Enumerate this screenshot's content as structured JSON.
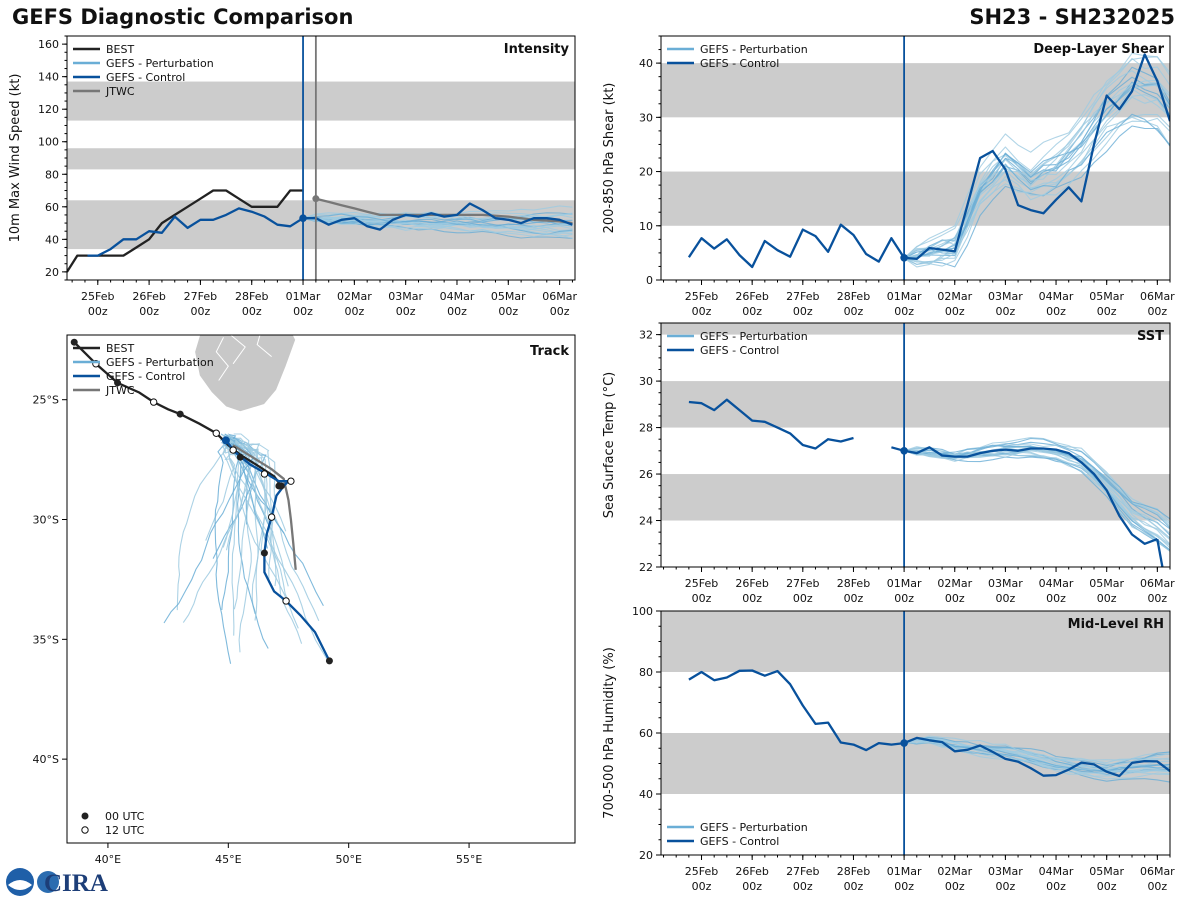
{
  "header": {
    "title": "GEFS Diagnostic Comparison",
    "storm_id": "SH23 - SH232025"
  },
  "time_ticks": [
    {
      "day": "25Feb",
      "hr": "00z",
      "t": 0
    },
    {
      "day": "26Feb",
      "hr": "00z",
      "t": 1
    },
    {
      "day": "27Feb",
      "hr": "00z",
      "t": 2
    },
    {
      "day": "28Feb",
      "hr": "00z",
      "t": 3
    },
    {
      "day": "01Mar",
      "hr": "00z",
      "t": 4
    },
    {
      "day": "02Mar",
      "hr": "00z",
      "t": 5
    },
    {
      "day": "03Mar",
      "hr": "00z",
      "t": 6
    },
    {
      "day": "04Mar",
      "hr": "00z",
      "t": 7
    },
    {
      "day": "05Mar",
      "hr": "00z",
      "t": 8
    },
    {
      "day": "06Mar",
      "hr": "00z",
      "t": 9
    }
  ],
  "colors": {
    "best": "#222222",
    "perturbation": "#6aaed6",
    "perturbation_light": "#9ecae1",
    "control": "#08519c",
    "jtwc": "#777777",
    "band": "#cccccc",
    "land": "#c8c8c8"
  },
  "logo": {
    "text": "CIRA"
  },
  "chart_data": [
    {
      "id": "intensity",
      "type": "line",
      "title": "Intensity",
      "ylabel": "10m Max Wind Speed (kt)",
      "xlim": [
        -0.6,
        9.3
      ],
      "ylim": [
        15,
        165
      ],
      "yticks": [
        20,
        40,
        60,
        80,
        100,
        120,
        140,
        160
      ],
      "bands": [
        [
          34,
          64
        ],
        [
          83,
          96
        ],
        [
          113,
          137
        ]
      ],
      "vlines": [
        {
          "t": 4.0,
          "color": "control"
        },
        {
          "t": 4.25,
          "color": "jtwc"
        }
      ],
      "legend": [
        "BEST",
        "GEFS - Perturbation",
        "GEFS - Control",
        "JTWC"
      ],
      "best": {
        "t": [
          -0.6,
          -0.4,
          -0.2,
          0.0,
          0.25,
          0.5,
          0.75,
          1.0,
          1.25,
          1.5,
          1.75,
          2.0,
          2.25,
          2.5,
          2.75,
          3.0,
          3.25,
          3.5,
          3.75,
          4.0
        ],
        "v": [
          20,
          30,
          30,
          30,
          30,
          30,
          35,
          40,
          50,
          55,
          60,
          65,
          70,
          70,
          65,
          60,
          60,
          60,
          70,
          70
        ]
      },
      "control": {
        "t": [
          -0.2,
          0.0,
          0.25,
          0.5,
          0.75,
          1.0,
          1.25,
          1.5,
          1.75,
          2.0,
          2.25,
          2.5,
          2.75,
          3.0,
          3.25,
          3.5,
          3.75,
          4.0,
          4.25,
          4.5,
          4.75,
          5.0,
          5.25,
          5.5,
          5.75,
          6.0,
          6.25,
          6.5,
          6.75,
          7.0,
          7.25,
          7.5,
          7.75,
          8.0,
          8.25,
          8.5,
          8.75,
          9.0,
          9.25
        ],
        "v": [
          30,
          30,
          34,
          40,
          40,
          45,
          44,
          54,
          47,
          52,
          52,
          55,
          59,
          57,
          54,
          49,
          48,
          53,
          53,
          49,
          52,
          53,
          48,
          46,
          52,
          55,
          54,
          56,
          54,
          55,
          62,
          58,
          53,
          52,
          50,
          53,
          53,
          52,
          49
        ]
      },
      "jtwc": {
        "t": [
          4.25,
          4.5,
          4.75,
          5.0,
          5.25,
          5.5,
          5.75,
          6.0,
          6.5,
          7.0,
          7.5,
          8.0,
          8.5,
          9.0,
          9.25
        ],
        "v": [
          65,
          63,
          61,
          59,
          57,
          55,
          55,
          55,
          55,
          55,
          55,
          54,
          52,
          51,
          50
        ]
      },
      "perturbation": {
        "start": 4.0,
        "end": 9.3,
        "step": 0.25,
        "start_value": 53,
        "members": 20,
        "spread": 8,
        "drift": -4,
        "seed": 11
      }
    },
    {
      "id": "shear",
      "type": "line",
      "title": "Deep-Layer Shear",
      "ylabel": "200-850 hPa Shear (kt)",
      "xlim": [
        -0.8,
        9.25
      ],
      "ylim": [
        0,
        45
      ],
      "yticks": [
        0,
        10,
        20,
        30,
        40
      ],
      "bands": [
        [
          10,
          20
        ],
        [
          30,
          40
        ]
      ],
      "vlines": [
        {
          "t": 4.0,
          "color": "control"
        }
      ],
      "legend": [
        "GEFS - Perturbation",
        "GEFS - Control"
      ],
      "control": {
        "t": [
          -0.25,
          0.0,
          0.25,
          0.5,
          0.75,
          1.0,
          1.25,
          1.5,
          1.75,
          2.0,
          2.25,
          2.5,
          2.75,
          3.0,
          3.25,
          3.5,
          3.75,
          4.0,
          4.25,
          4.5,
          4.75,
          5.0,
          5.25,
          5.5,
          5.75,
          6.0,
          6.25,
          6.5,
          6.75,
          7.0,
          7.25,
          7.5,
          7.75,
          8.0,
          8.25,
          8.5,
          8.75,
          9.0,
          9.25
        ],
        "v": [
          4.2,
          7.7,
          5.8,
          7.5,
          4.6,
          2.4,
          7.2,
          5.5,
          4.3,
          9.3,
          8.1,
          5.2,
          10.2,
          8.3,
          4.8,
          3.4,
          7.7,
          4.1,
          3.9,
          5.9,
          5.6,
          5.3,
          13.8,
          22.5,
          23.8,
          20.4,
          13.8,
          12.9,
          12.3,
          14.8,
          17.1,
          14.5,
          25.0,
          34.0,
          31.5,
          34.8,
          41.6,
          36.7,
          29.3
        ]
      },
      "perturbation": {
        "start": 4.0,
        "end": 9.25,
        "step": 0.25,
        "members": 20,
        "seed": 23,
        "guide_t": [
          4.0,
          4.5,
          5.0,
          5.5,
          6.0,
          6.5,
          7.0,
          7.5,
          8.0,
          8.5,
          9.0,
          9.25
        ],
        "guide_v": [
          4,
          5,
          6,
          16,
          21,
          18,
          20,
          24,
          30,
          34,
          33,
          30
        ],
        "spread": 6
      }
    },
    {
      "id": "sst",
      "type": "line",
      "title": "SST",
      "ylabel": "Sea Surface Temp (°C)",
      "xlim": [
        -0.8,
        9.25
      ],
      "ylim": [
        22,
        32.5
      ],
      "yticks": [
        22,
        24,
        26,
        28,
        30,
        32
      ],
      "bands": [
        [
          24,
          26
        ],
        [
          28,
          30
        ],
        [
          32,
          32.5
        ]
      ],
      "vlines": [
        {
          "t": 4.0,
          "color": "control"
        }
      ],
      "legend": [
        "GEFS - Perturbation",
        "GEFS - Control"
      ],
      "control_hist": {
        "t": [
          -0.25,
          0.0,
          0.25,
          0.5,
          0.75,
          1.0,
          1.25,
          1.5,
          1.75,
          2.0,
          2.25,
          2.5,
          2.75,
          3.0
        ],
        "v": [
          29.1,
          29.05,
          28.75,
          29.2,
          28.75,
          28.3,
          28.25,
          28.0,
          27.75,
          27.25,
          27.1,
          27.5,
          27.4,
          27.55
        ]
      },
      "control": {
        "t": [
          3.75,
          4.0,
          4.25,
          4.5,
          4.75,
          5.0,
          5.25,
          5.5,
          5.75,
          6.0,
          6.25,
          6.5,
          6.75,
          7.0,
          7.25,
          7.5,
          7.75,
          8.0,
          8.25,
          8.5,
          8.75,
          9.0
        ],
        "v": [
          27.15,
          27.0,
          26.9,
          27.15,
          26.8,
          26.75,
          26.75,
          26.9,
          27.0,
          27.05,
          27.0,
          27.1,
          27.1,
          27.05,
          26.9,
          26.5,
          26.0,
          25.3,
          24.2,
          23.4,
          23.0,
          23.2
        ]
      },
      "control_tail": {
        "t": [
          9.0,
          9.1
        ],
        "v": [
          23.2,
          22.0
        ]
      },
      "perturbation": {
        "start": 4.0,
        "end": 9.25,
        "step": 0.25,
        "members": 20,
        "seed": 37,
        "guide_t": [
          4.0,
          5.0,
          6.0,
          6.5,
          7.0,
          7.5,
          8.0,
          8.5,
          9.0,
          9.25
        ],
        "guide_v": [
          27.0,
          26.8,
          27.1,
          27.2,
          27.0,
          26.6,
          25.6,
          24.4,
          23.8,
          23.3
        ],
        "spread": 0.6
      }
    },
    {
      "id": "rh",
      "type": "line",
      "title": "Mid-Level RH",
      "ylabel": "700-500 hPa Humidity (%)",
      "xlim": [
        -0.8,
        9.25
      ],
      "ylim": [
        20,
        100
      ],
      "yticks": [
        20,
        40,
        60,
        80,
        100
      ],
      "bands": [
        [
          40,
          60
        ],
        [
          80,
          100
        ]
      ],
      "vlines": [
        {
          "t": 4.0,
          "color": "control"
        }
      ],
      "legend": [
        "GEFS - Perturbation",
        "GEFS - Control"
      ],
      "control": {
        "t": [
          -0.25,
          0.0,
          0.25,
          0.5,
          0.75,
          1.0,
          1.25,
          1.5,
          1.75,
          2.0,
          2.25,
          2.5,
          2.75,
          3.0,
          3.25,
          3.5,
          3.75,
          4.0,
          4.25,
          4.5,
          4.75,
          5.0,
          5.25,
          5.5,
          5.75,
          6.0,
          6.25,
          6.5,
          6.75,
          7.0,
          7.25,
          7.5,
          7.75,
          8.0,
          8.25,
          8.5,
          8.75,
          9.0,
          9.25
        ],
        "v": [
          77.5,
          80.0,
          77.3,
          78.2,
          80.4,
          80.5,
          78.8,
          80.3,
          76.0,
          69.0,
          63.0,
          63.4,
          56.9,
          56.2,
          54.4,
          56.7,
          56.2,
          56.7,
          58.4,
          57.6,
          57.0,
          54.0,
          54.5,
          55.9,
          53.8,
          51.5,
          50.6,
          48.5,
          46.0,
          46.2,
          48.0,
          50.3,
          49.7,
          47.3,
          45.9,
          50.2,
          50.8,
          50.7,
          47.5
        ]
      },
      "perturbation": {
        "start": 4.0,
        "end": 9.25,
        "step": 0.25,
        "members": 20,
        "seed": 51,
        "guide_t": [
          4.0,
          4.5,
          5.0,
          6.0,
          7.0,
          8.0,
          9.0,
          9.25
        ],
        "guide_v": [
          57,
          58,
          56,
          54,
          50,
          48,
          50,
          50
        ],
        "spread": 4
      }
    },
    {
      "id": "track",
      "type": "line",
      "title": "Track",
      "xlim": [
        38.3,
        59.4
      ],
      "ylim": [
        -43.5,
        -22.3
      ],
      "xticks": [
        {
          "v": 40,
          "label": "40°E"
        },
        {
          "v": 45,
          "label": "45°E"
        },
        {
          "v": 50,
          "label": "50°E"
        },
        {
          "v": 55,
          "label": "55°E"
        }
      ],
      "yticks": [
        {
          "v": -25,
          "label": "25°S"
        },
        {
          "v": -30,
          "label": "30°S"
        },
        {
          "v": -35,
          "label": "35°S"
        },
        {
          "v": -40,
          "label": "40°S"
        }
      ],
      "legend": [
        "BEST",
        "GEFS - Perturbation",
        "GEFS - Control",
        "JTWC"
      ],
      "marker_legend": [
        "00 UTC",
        "12 UTC"
      ],
      "best": {
        "lon": [
          38.6,
          39.5,
          40.4,
          41.3,
          41.9,
          42.5,
          43.0,
          43.8,
          44.5,
          45.0,
          45.5,
          46.3,
          46.9,
          47.2
        ],
        "lat": [
          -22.6,
          -23.5,
          -24.3,
          -24.7,
          -25.1,
          -25.4,
          -25.6,
          -26.0,
          -26.4,
          -26.9,
          -27.3,
          -27.8,
          -28.2,
          -28.6
        ]
      },
      "best_markers": [
        {
          "lon": 38.6,
          "lat": -22.6,
          "kind": "00"
        },
        {
          "lon": 39.5,
          "lat": -23.5,
          "kind": "12"
        },
        {
          "lon": 40.4,
          "lat": -24.3,
          "kind": "00"
        },
        {
          "lon": 41.9,
          "lat": -25.1,
          "kind": "12"
        },
        {
          "lon": 43.0,
          "lat": -25.6,
          "kind": "00"
        },
        {
          "lon": 44.5,
          "lat": -26.4,
          "kind": "12"
        },
        {
          "lon": 45.5,
          "lat": -27.4,
          "kind": "00"
        },
        {
          "lon": 47.2,
          "lat": -28.6,
          "kind": "00"
        }
      ],
      "control": {
        "lon": [
          44.9,
          45.3,
          45.9,
          46.6,
          47.1,
          47.5,
          47.3,
          47.0,
          46.8,
          46.6,
          46.5,
          46.5,
          46.9,
          47.4,
          48.0,
          48.6,
          49.2
        ],
        "lat": [
          -26.7,
          -27.2,
          -27.7,
          -28.1,
          -28.4,
          -28.4,
          -28.6,
          -29.0,
          -29.9,
          -30.6,
          -31.4,
          -32.2,
          -33.0,
          -33.4,
          -34.0,
          -34.7,
          -35.9
        ]
      },
      "control_markers": [
        {
          "lon": 44.9,
          "lat": -26.7,
          "kind": "big"
        },
        {
          "lon": 45.2,
          "lat": -27.1,
          "kind": "12"
        },
        {
          "lon": 46.5,
          "lat": -28.1,
          "kind": "12"
        },
        {
          "lon": 47.6,
          "lat": -28.4,
          "kind": "12"
        },
        {
          "lon": 47.1,
          "lat": -28.6,
          "kind": "00"
        },
        {
          "lon": 46.8,
          "lat": -29.9,
          "kind": "12"
        },
        {
          "lon": 46.5,
          "lat": -31.4,
          "kind": "00"
        },
        {
          "lon": 47.4,
          "lat": -33.4,
          "kind": "12"
        },
        {
          "lon": 49.2,
          "lat": -35.9,
          "kind": "00"
        }
      ],
      "jtwc": {
        "lon": [
          45.2,
          46.0,
          46.8,
          47.3,
          47.5,
          47.6,
          47.7,
          47.8
        ],
        "lat": [
          -26.9,
          -27.4,
          -27.9,
          -28.3,
          -29.2,
          -30.0,
          -31.0,
          -32.1
        ]
      },
      "perturbation": {
        "members": 30,
        "seed": 7,
        "start_lon": 45.0,
        "start_lat": -26.6
      }
    }
  ]
}
